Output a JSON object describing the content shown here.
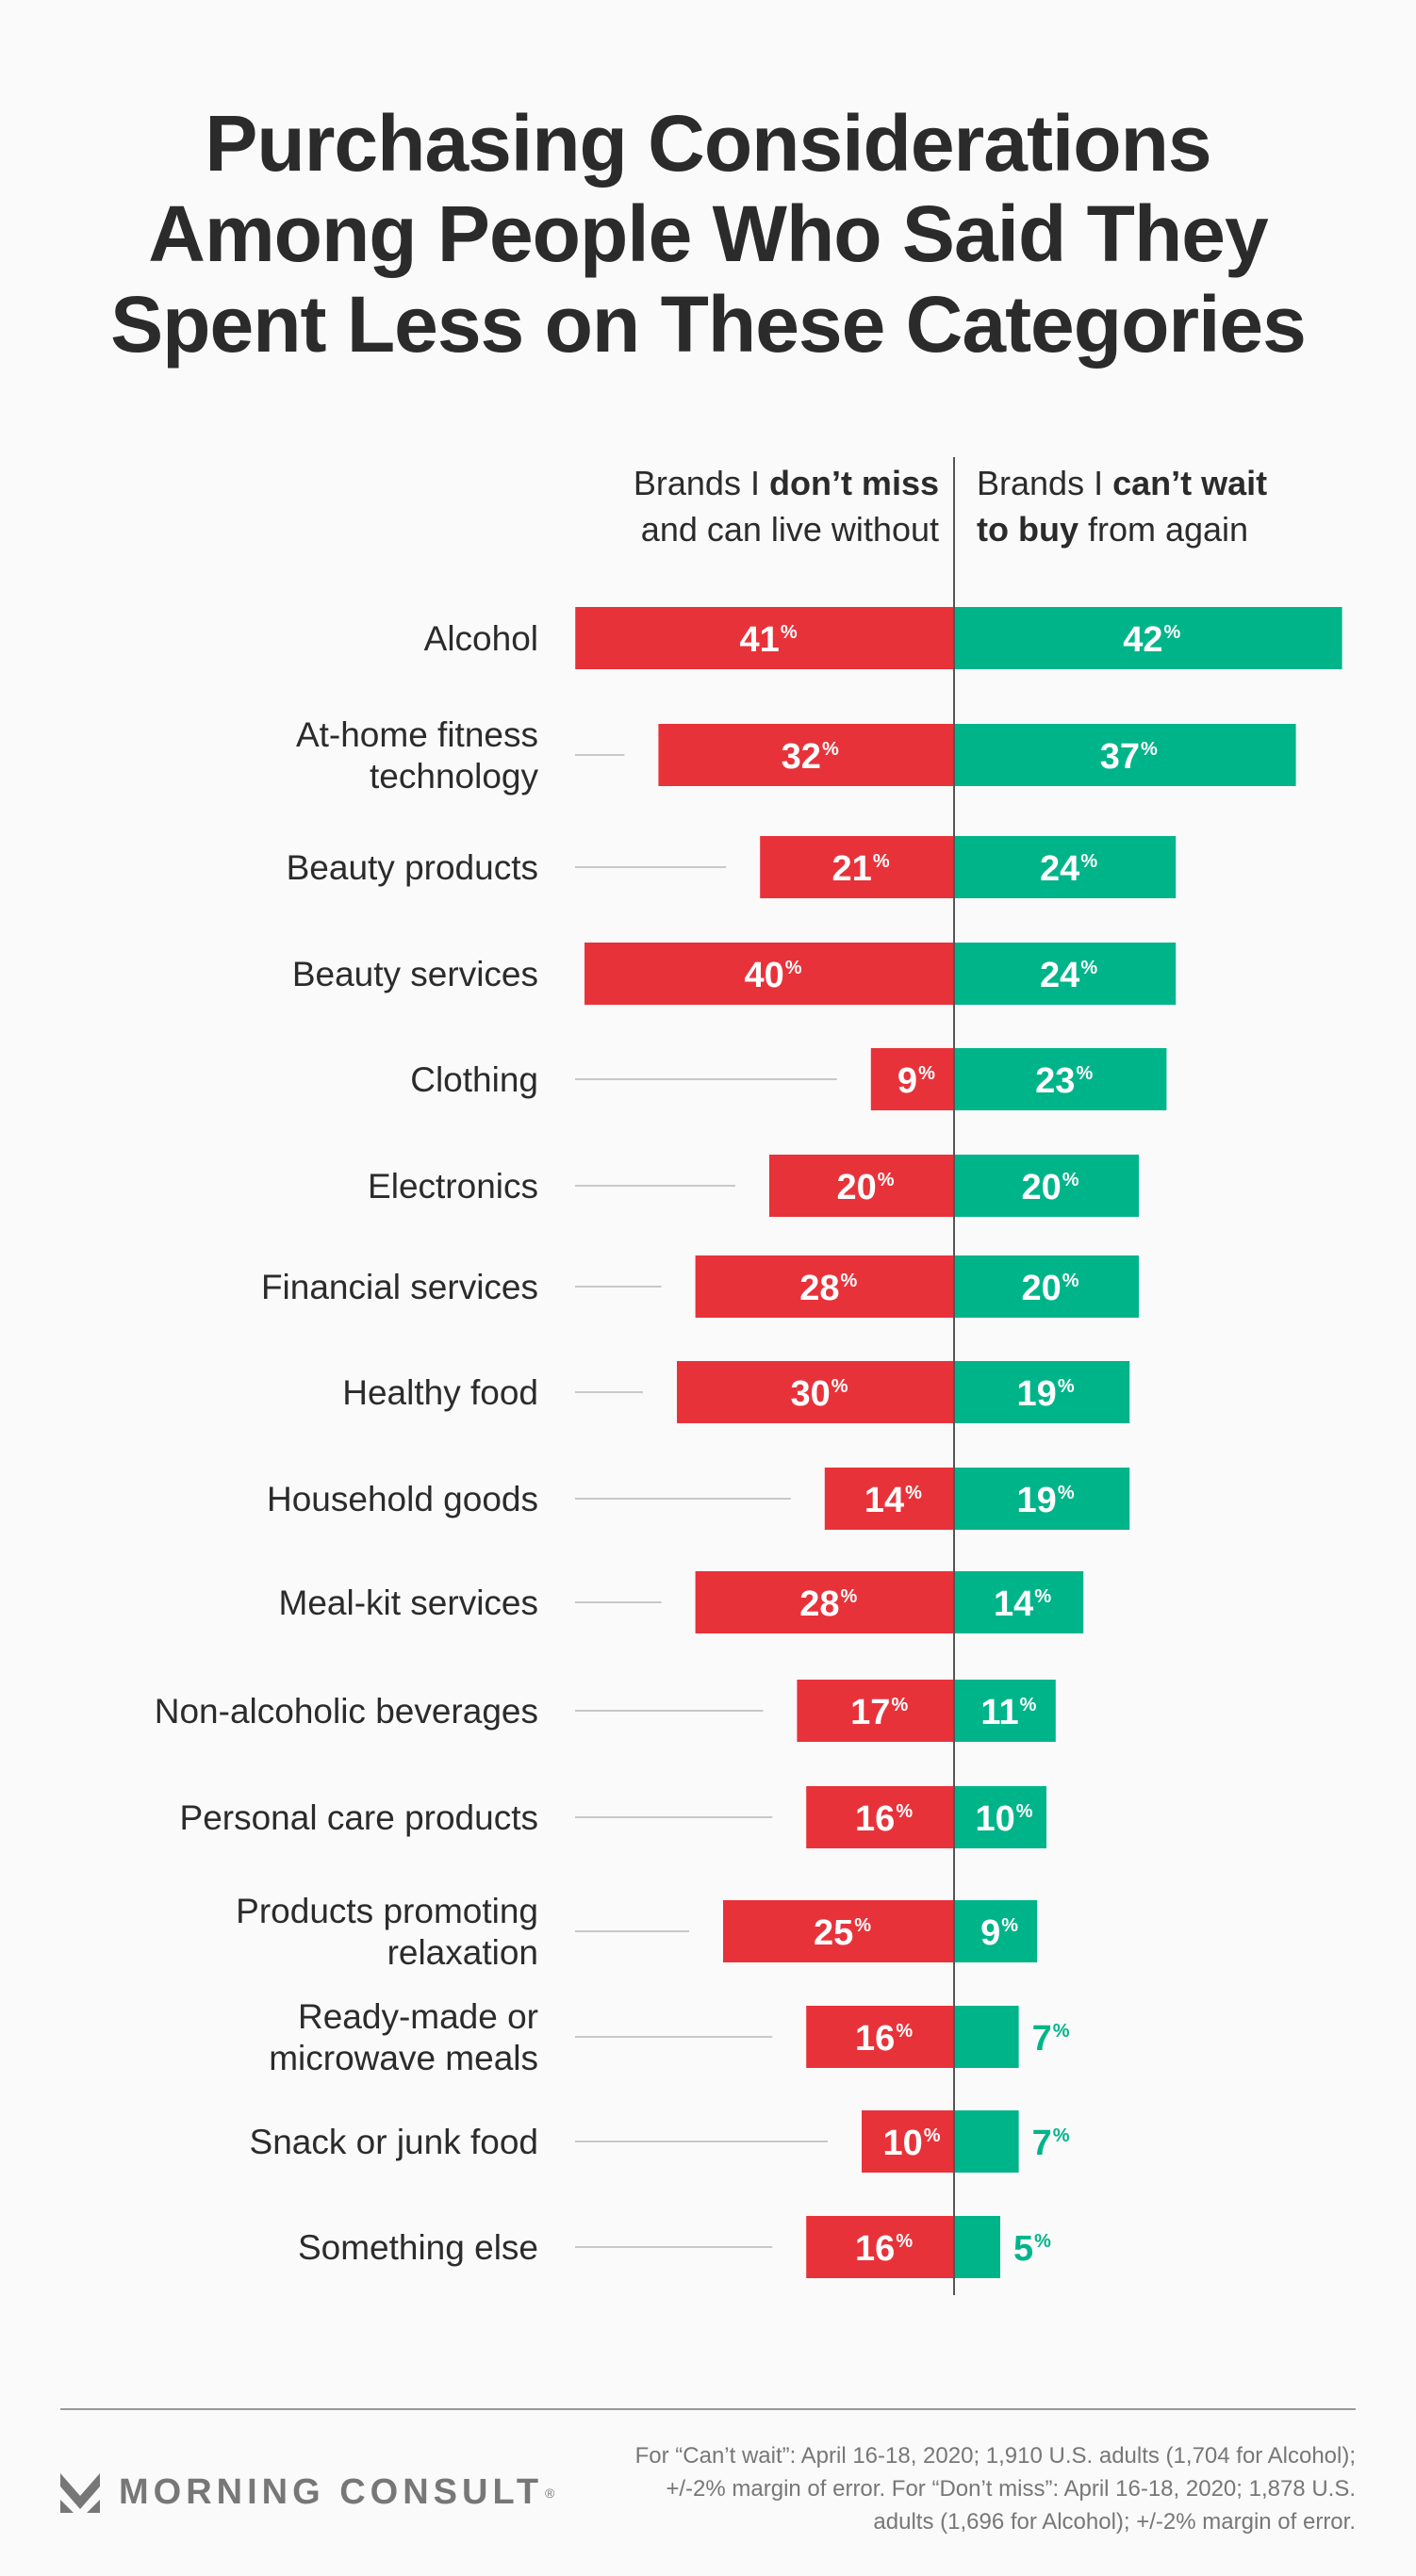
{
  "title_lines": [
    "Purchasing Considerations",
    "Among People Who Said They",
    "Spent Less on These Categories"
  ],
  "column_headers": {
    "left": {
      "line1_pre": "Brands I ",
      "line1_bold": "don’t miss",
      "line2": "and can live without"
    },
    "right": {
      "line1_pre": "Brands I ",
      "line1_bold": "can’t wait",
      "line2_bold": "to buy",
      "line2_post": " from again"
    }
  },
  "colors": {
    "dont_miss": "#E8323A",
    "cant_wait": "#00B48A",
    "leader_line": "#c8c8c8",
    "center_axis": "#555555"
  },
  "chart_data": {
    "type": "bar",
    "orientation": "horizontal-diverging",
    "title": "Purchasing Considerations Among People Who Said They Spent Less on These Categories",
    "unit": "%",
    "categories": [
      [
        "Alcohol"
      ],
      [
        "At-home fitness",
        "technology"
      ],
      [
        "Beauty products"
      ],
      [
        "Beauty services"
      ],
      [
        "Clothing"
      ],
      [
        "Electronics"
      ],
      [
        "Financial services"
      ],
      [
        "Healthy food"
      ],
      [
        "Household goods"
      ],
      [
        "Meal-kit services"
      ],
      [
        "Non-alcoholic beverages"
      ],
      [
        "Personal care products"
      ],
      [
        "Products promoting",
        "relaxation"
      ],
      [
        "Ready-made or",
        "microwave meals"
      ],
      [
        "Snack or junk food"
      ],
      [
        "Something else"
      ]
    ],
    "series": [
      {
        "name": "Brands I don’t miss and can live without",
        "side": "left",
        "values": [
          41,
          32,
          21,
          40,
          9,
          20,
          28,
          30,
          14,
          28,
          17,
          16,
          25,
          16,
          10,
          16
        ]
      },
      {
        "name": "Brands I can’t wait to buy from again",
        "side": "right",
        "values": [
          42,
          37,
          24,
          24,
          23,
          20,
          20,
          19,
          19,
          14,
          11,
          10,
          9,
          7,
          7,
          5
        ]
      }
    ],
    "xlim": [
      0,
      45
    ],
    "legend": "top (column headers)",
    "grid": false
  },
  "footer": {
    "brand": "MORNING CONSULT",
    "registered_mark": "®",
    "logo_icon": "morning-consult-chevron-logo",
    "footnote": "For “Can’t wait”: April 16-18, 2020; 1,910 U.S. adults (1,704 for Alcohol); +/-2% margin of error. For “Don’t miss”: April 16-18, 2020; 1,878 U.S. adults (1,696 for Alcohol); +/-2% margin of error."
  }
}
